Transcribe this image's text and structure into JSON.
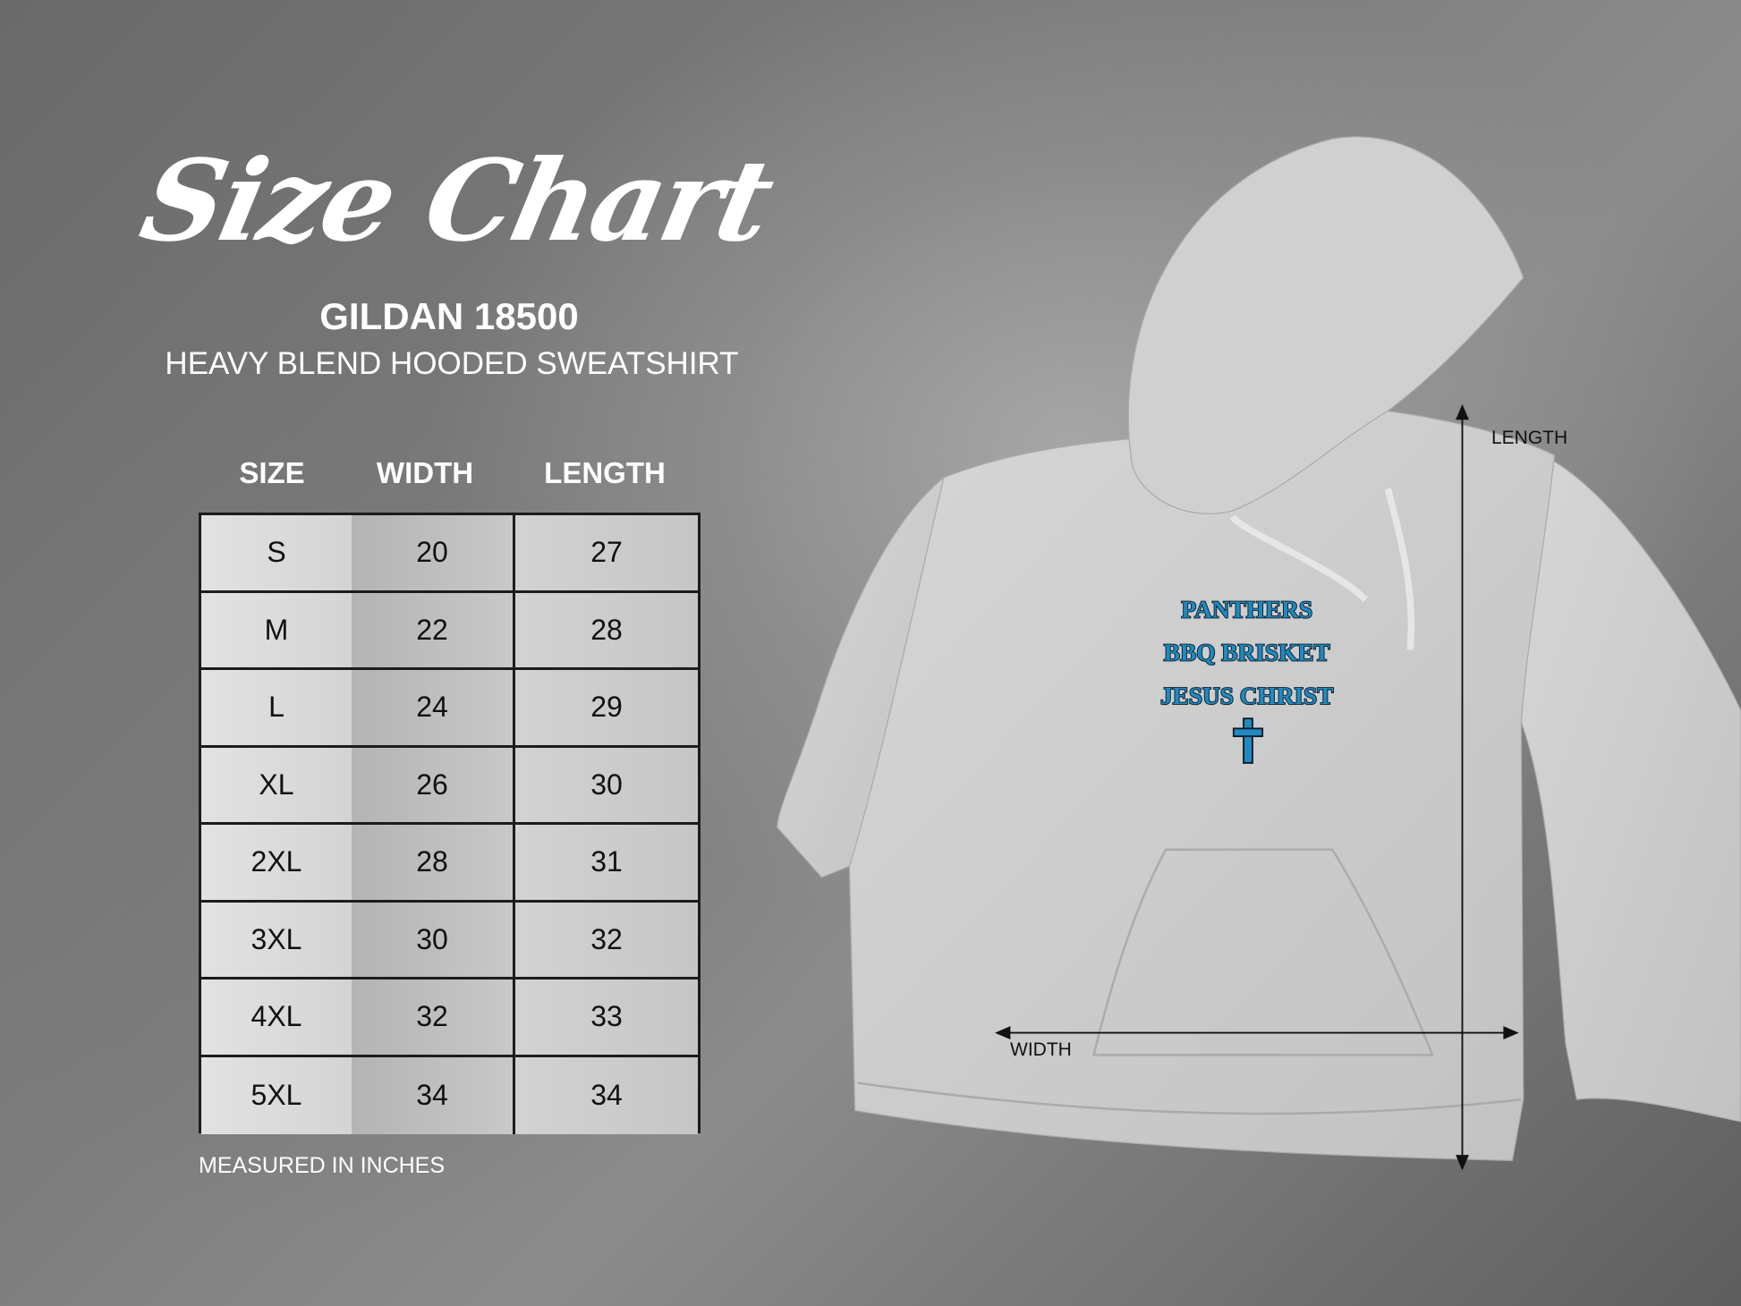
{
  "title": "Size Chart",
  "brand": "GILDAN 18500",
  "product": "HEAVY BLEND HOODED SWEATSHIRT",
  "table": {
    "headers": [
      "SIZE",
      "WIDTH",
      "LENGTH"
    ],
    "rows": [
      [
        "S",
        "20",
        "27"
      ],
      [
        "M",
        "22",
        "28"
      ],
      [
        "L",
        "24",
        "29"
      ],
      [
        "XL",
        "26",
        "30"
      ],
      [
        "2XL",
        "28",
        "31"
      ],
      [
        "3XL",
        "30",
        "32"
      ],
      [
        "4XL",
        "32",
        "33"
      ],
      [
        "5XL",
        "34",
        "34"
      ]
    ]
  },
  "note": "MEASURED IN INCHES",
  "diagram": {
    "length_label": "LENGTH",
    "width_label": "WIDTH",
    "print_lines": [
      "PANTHERS",
      "BBQ BRISKET",
      "JESUS CHRIST"
    ],
    "print_icon": "cross-icon",
    "print_color": "#1f8ac0",
    "garment_color": "#cfcfcf"
  }
}
